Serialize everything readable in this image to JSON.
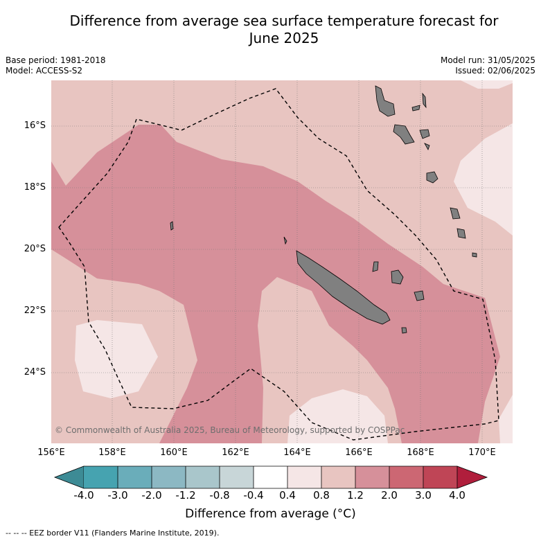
{
  "title_line1": "Difference from average sea surface temperature forecast for",
  "title_line2": "June 2025",
  "base_period": "Base period: 1981-2018",
  "model": "Model: ACCESS-S2",
  "model_run": "Model run: 31/05/2025",
  "issued": "Issued: 02/06/2025",
  "copyright": "© Commonwealth of Australia 2025, Bureau of Meteorology, supported by COSPPac",
  "lat_labels": [
    "16°S",
    "18°S",
    "20°S",
    "22°S",
    "24°S"
  ],
  "lon_labels": [
    "156°E",
    "158°E",
    "160°E",
    "162°E",
    "164°E",
    "166°E",
    "168°E",
    "170°E"
  ],
  "colorbar": {
    "title": "Difference from average (°C)",
    "tick_labels": [
      "-4.0",
      "-3.0",
      "-2.0",
      "-1.2",
      "-0.8",
      "-0.4",
      "0.4",
      "0.8",
      "1.2",
      "2.0",
      "3.0",
      "4.0"
    ],
    "colors": [
      "#3d8b95",
      "#46a3b0",
      "#6aadba",
      "#8cb8c3",
      "#a9c6cb",
      "#c8d6d8",
      "#ffffff",
      "#f5e6e6",
      "#e8c5c1",
      "#d6909a",
      "#cc6773",
      "#bf4556",
      "#b01e3c"
    ]
  },
  "footnote": "--  --  -- EEZ border V11 (Flanders Marine Institute, 2019)."
}
